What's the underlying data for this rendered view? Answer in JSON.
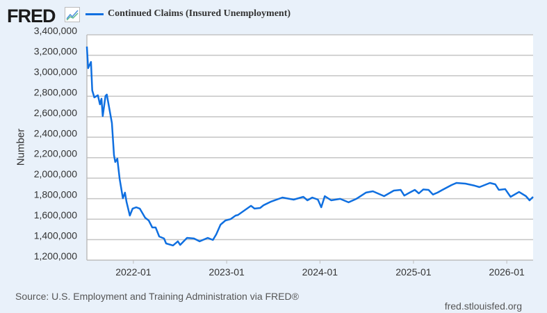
{
  "header": {
    "logo": "FRED",
    "logo_icon": "line-chart-icon"
  },
  "chart_data": {
    "type": "line",
    "title": "",
    "ylabel": "Number",
    "xlabel": "",
    "ylim": [
      1200000,
      3400000
    ],
    "xlim": [
      "2021-07-03",
      "2026-04-14"
    ],
    "yticks": [
      1200000,
      1400000,
      1600000,
      1800000,
      2000000,
      2200000,
      2400000,
      2600000,
      2800000,
      3000000,
      3200000,
      3400000
    ],
    "ytick_labels": [
      "1,200,000",
      "1,400,000",
      "1,600,000",
      "1,800,000",
      "2,000,000",
      "2,200,000",
      "2,400,000",
      "2,600,000",
      "2,800,000",
      "3,000,000",
      "3,200,000",
      "3,400,000"
    ],
    "xticks": [
      "2022-01-01",
      "2023-01-01",
      "2024-01-01",
      "2025-01-01",
      "2026-01-01"
    ],
    "xtick_labels": [
      "2022-01",
      "2023-01",
      "2024-01",
      "2025-01",
      "2026-01"
    ],
    "grid": true,
    "legend_placement": "top-left",
    "series": [
      {
        "name": "Continued Claims (Insured Unemployment)",
        "color": "#0f6fe0",
        "x": [
          "2021-07-03",
          "2021-07-08",
          "2021-07-19",
          "2021-07-24",
          "2021-08-01",
          "2021-08-15",
          "2021-08-23",
          "2021-08-29",
          "2021-09-03",
          "2021-09-14",
          "2021-09-19",
          "2021-10-09",
          "2021-10-17",
          "2021-10-22",
          "2021-10-30",
          "2021-11-08",
          "2021-11-21",
          "2021-11-29",
          "2021-12-05",
          "2021-12-18",
          "2021-12-29",
          "2022-01-12",
          "2022-01-26",
          "2022-02-16",
          "2022-03-02",
          "2022-03-16",
          "2022-03-29",
          "2022-04-12",
          "2022-05-01",
          "2022-05-09",
          "2022-06-05",
          "2022-06-24",
          "2022-07-03",
          "2022-07-30",
          "2022-08-26",
          "2022-09-17",
          "2022-10-19",
          "2022-11-08",
          "2022-11-21",
          "2022-12-08",
          "2022-12-27",
          "2023-01-17",
          "2023-02-05",
          "2023-02-14",
          "2023-04-06",
          "2023-04-20",
          "2023-05-12",
          "2023-05-25",
          "2023-06-22",
          "2023-08-07",
          "2023-09-20",
          "2023-10-28",
          "2023-11-13",
          "2023-12-02",
          "2023-12-24",
          "2024-01-06",
          "2024-01-20",
          "2024-02-14",
          "2024-03-20",
          "2024-04-22",
          "2024-05-22",
          "2024-06-29",
          "2024-07-26",
          "2024-09-08",
          "2024-10-16",
          "2024-11-12",
          "2024-11-26",
          "2024-12-17",
          "2025-01-06",
          "2025-01-22",
          "2025-02-08",
          "2025-03-01",
          "2025-03-18",
          "2025-04-05",
          "2025-04-24",
          "2025-05-30",
          "2025-06-18",
          "2025-07-23",
          "2025-08-28",
          "2025-09-16",
          "2025-10-27",
          "2025-11-17",
          "2025-12-01",
          "2025-12-26",
          "2026-01-16",
          "2026-02-18",
          "2026-03-17",
          "2026-03-31",
          "2026-04-14"
        ],
        "values": [
          3285000,
          3074000,
          3135000,
          2857000,
          2789000,
          2809000,
          2721000,
          2776000,
          2606000,
          2803000,
          2816000,
          2538000,
          2225000,
          2158000,
          2191000,
          1995000,
          1804000,
          1859000,
          1770000,
          1635000,
          1703000,
          1716000,
          1703000,
          1614000,
          1587000,
          1519000,
          1519000,
          1431000,
          1411000,
          1363000,
          1343000,
          1383000,
          1349000,
          1417000,
          1411000,
          1383000,
          1417000,
          1397000,
          1451000,
          1546000,
          1587000,
          1601000,
          1635000,
          1641000,
          1730000,
          1703000,
          1709000,
          1736000,
          1770000,
          1811000,
          1791000,
          1818000,
          1784000,
          1811000,
          1791000,
          1716000,
          1825000,
          1784000,
          1798000,
          1764000,
          1798000,
          1859000,
          1872000,
          1825000,
          1879000,
          1886000,
          1830000,
          1859000,
          1886000,
          1852000,
          1890000,
          1886000,
          1840000,
          1859000,
          1886000,
          1933000,
          1954000,
          1947000,
          1927000,
          1913000,
          1954000,
          1940000,
          1886000,
          1893000,
          1818000,
          1866000,
          1825000,
          1784000,
          1818000
        ]
      }
    ]
  },
  "footer": {
    "source": "Source: U.S. Employment and Training Administration via FRED®",
    "site": "fred.stlouisfed.org"
  }
}
